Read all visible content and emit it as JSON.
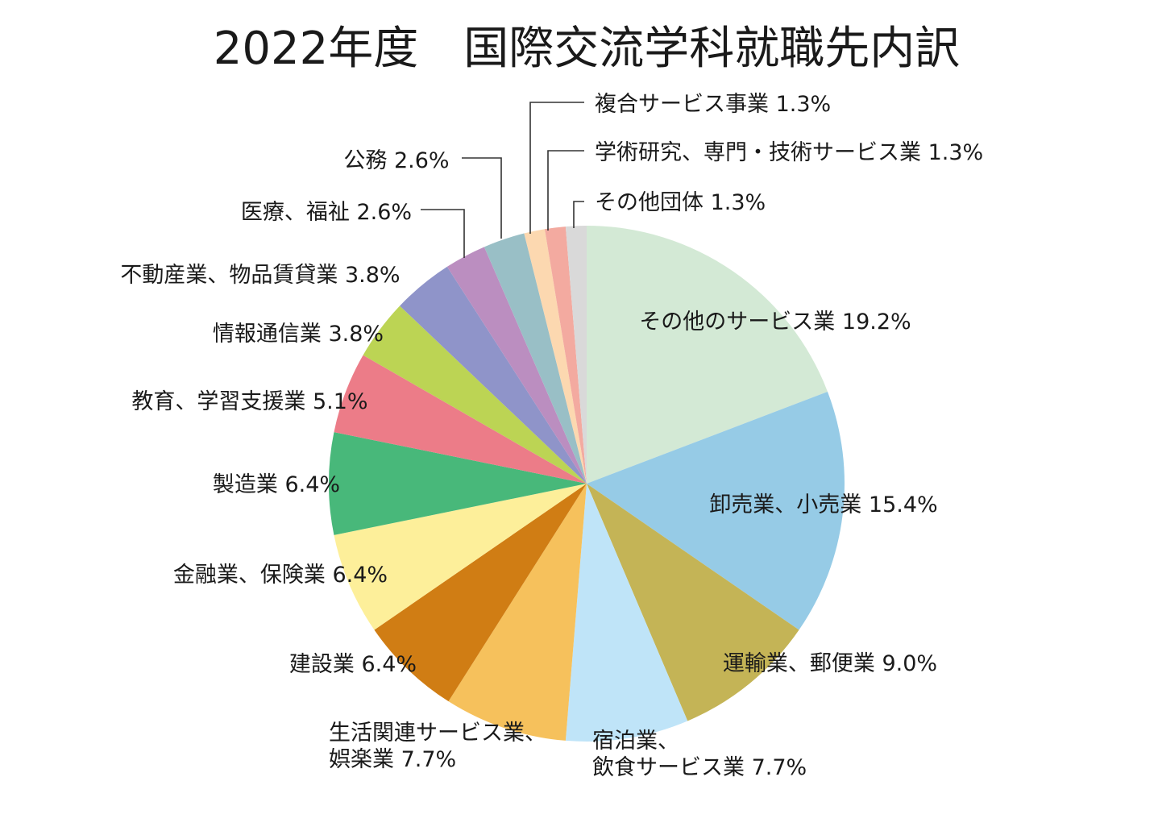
{
  "chart_data": {
    "type": "pie",
    "title": "2022年度　国際交流学科就職先内訳",
    "unit": "%",
    "start": "top, clockwise",
    "slices": [
      {
        "label": "その他のサービス業",
        "value": 19.2,
        "display": "19.2%",
        "color": "#d3e9d5"
      },
      {
        "label": "卸売業、小売業",
        "value": 15.4,
        "display": "15.4%",
        "color": "#96cbe6"
      },
      {
        "label": "運輸業、郵便業",
        "value": 9.0,
        "display": "9.0%",
        "color": "#c4b456"
      },
      {
        "label": "宿泊業、飲食サービス業",
        "value": 7.7,
        "display": "7.7%",
        "color": "#bfe4f8"
      },
      {
        "label": "生活関連サービス業、娯楽業",
        "value": 7.7,
        "display": "7.7%",
        "color": "#f6c15c"
      },
      {
        "label": "建設業",
        "value": 6.4,
        "display": "6.4%",
        "color": "#d07d14"
      },
      {
        "label": "金融業、保険業",
        "value": 6.4,
        "display": "6.4%",
        "color": "#fdef9a"
      },
      {
        "label": "製造業",
        "value": 6.4,
        "display": "6.4%",
        "color": "#48b87a"
      },
      {
        "label": "教育、学習支援業",
        "value": 5.1,
        "display": "5.1%",
        "color": "#ec7c88"
      },
      {
        "label": "情報通信業",
        "value": 3.8,
        "display": "3.8%",
        "color": "#bcd454"
      },
      {
        "label": "不動産業、物品賃貸業",
        "value": 3.8,
        "display": "3.8%",
        "color": "#8f94c9"
      },
      {
        "label": "医療、福祉",
        "value": 2.6,
        "display": "2.6%",
        "color": "#bb8ec0"
      },
      {
        "label": "公務",
        "value": 2.6,
        "display": "2.6%",
        "color": "#99bfc6"
      },
      {
        "label": "複合サービス事業",
        "value": 1.3,
        "display": "1.3%",
        "color": "#fcd8b0"
      },
      {
        "label": "学術研究、専門・技術サービス業",
        "value": 1.3,
        "display": "1.3%",
        "color": "#f3aaa0"
      },
      {
        "label": "その他団体",
        "value": 1.3,
        "display": "1.3%",
        "color": "#d9d9d9"
      }
    ],
    "label_lines": [
      [
        "その他のサービス業 19.2%"
      ],
      [
        "卸売業、小売業 15.4%"
      ],
      [
        "運輸業、郵便業 9.0%"
      ],
      [
        "宿泊業、",
        "飲食サービス業 7.7%"
      ],
      [
        "生活関連サービス業、",
        "娯楽業 7.7%"
      ],
      [
        "建設業 6.4%"
      ],
      [
        "金融業、保険業 6.4%"
      ],
      [
        "製造業 6.4%"
      ],
      [
        "教育、学習支援業 5.1%"
      ],
      [
        "情報通信業 3.8%"
      ],
      [
        "不動産業、物品賃貸業 3.8%"
      ],
      [
        "医療、福祉 2.6%"
      ],
      [
        "公務 2.6%"
      ],
      [
        "複合サービス事業 1.3%"
      ],
      [
        "学術研究、専門・技術サービス業 1.3%"
      ],
      [
        "その他団体 1.3%"
      ]
    ]
  }
}
